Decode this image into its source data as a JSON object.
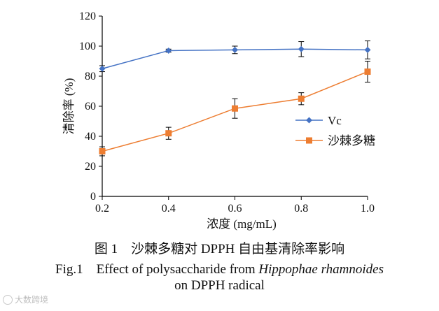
{
  "chart_data": {
    "type": "line",
    "x": [
      0.2,
      0.4,
      0.6,
      0.8,
      1.0
    ],
    "xticks": [
      "0.2",
      "0.4",
      "0.6",
      "0.8",
      "1.0"
    ],
    "xlim": [
      0.2,
      1.0
    ],
    "ylim": [
      0,
      120
    ],
    "yticks": [
      "0",
      "20",
      "40",
      "60",
      "80",
      "100",
      "120"
    ],
    "xlabel": "浓度 (mg/mL)",
    "ylabel": "清除率 (%)",
    "legend_position": "right",
    "grid": false,
    "series": [
      {
        "name": "Vc",
        "color": "#4472C4",
        "marker": "diamond",
        "values": [
          85,
          97,
          97.5,
          98,
          97.5
        ],
        "errors": [
          2,
          1,
          2.5,
          5,
          6
        ]
      },
      {
        "name": "沙棘多糖",
        "color": "#ED7D31",
        "marker": "square",
        "values": [
          30,
          42,
          58.5,
          65,
          83
        ],
        "errors": [
          3,
          4,
          6.5,
          4,
          7
        ]
      }
    ]
  },
  "caption": {
    "cn": "图 1　沙棘多糖对 DPPH 自由基清除率影响",
    "en_prefix": "Fig.1　Effect of polysaccharide from ",
    "en_italic": "Hippophae rhamnoides",
    "en_line2": "on DPPH radical"
  },
  "watermark": {
    "text": "大数跨境",
    "icon": "brand-logo-icon"
  }
}
